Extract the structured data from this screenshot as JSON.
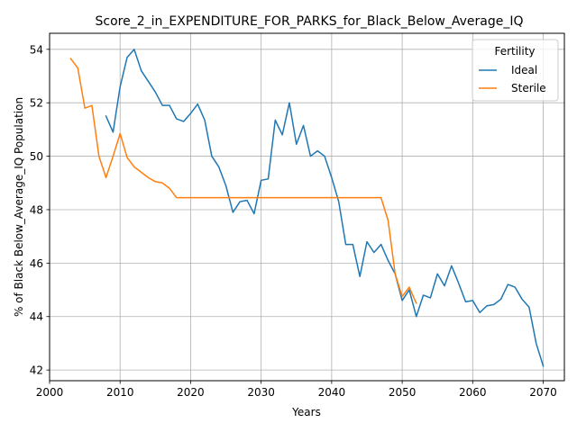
{
  "chart_data": {
    "type": "line",
    "title": "Score_2_in_EXPENDITURE_FOR_PARKS_for_Black_Below_Average_IQ",
    "xlabel": "Years",
    "ylabel": "% of Black Below_Average_IQ Population",
    "xlim": [
      2000,
      2073
    ],
    "ylim": [
      41.6,
      54.6
    ],
    "xticks": [
      2000,
      2010,
      2020,
      2030,
      2040,
      2050,
      2060,
      2070
    ],
    "yticks": [
      42,
      44,
      46,
      48,
      50,
      52,
      54
    ],
    "grid": true,
    "legend": {
      "title": "Fertility",
      "placement": "top-right"
    },
    "series": [
      {
        "name": "Ideal",
        "color": "#1f77b4",
        "x": [
          2008,
          2009,
          2010,
          2011,
          2012,
          2013,
          2014,
          2015,
          2016,
          2017,
          2018,
          2019,
          2020,
          2021,
          2022,
          2023,
          2024,
          2025,
          2026,
          2027,
          2028,
          2029,
          2030,
          2031,
          2032,
          2033,
          2034,
          2035,
          2036,
          2037,
          2038,
          2039,
          2040,
          2041,
          2042,
          2043,
          2044,
          2045,
          2046,
          2047,
          2048,
          2049,
          2050,
          2051,
          2052,
          2053,
          2054,
          2055,
          2056,
          2057,
          2058,
          2059,
          2060,
          2061,
          2062,
          2063,
          2064,
          2065,
          2066,
          2067,
          2068,
          2069,
          2070
        ],
        "y": [
          51.5,
          50.9,
          52.6,
          53.7,
          54.0,
          53.2,
          52.8,
          52.4,
          51.9,
          51.9,
          51.4,
          51.3,
          51.6,
          51.95,
          51.35,
          50.0,
          49.6,
          48.9,
          47.9,
          48.3,
          48.35,
          47.85,
          49.1,
          49.15,
          51.35,
          50.8,
          52.0,
          50.45,
          51.15,
          50.0,
          50.2,
          50.0,
          49.2,
          48.3,
          46.7,
          46.7,
          45.5,
          46.8,
          46.4,
          46.7,
          46.1,
          45.6,
          44.6,
          45.0,
          44.0,
          44.8,
          44.7,
          45.6,
          45.15,
          45.9,
          45.25,
          44.55,
          44.6,
          44.15,
          44.4,
          44.45,
          44.65,
          45.2,
          45.1,
          44.65,
          44.35,
          43.0,
          42.15
        ]
      },
      {
        "name": "Sterile",
        "color": "#ff7f0e",
        "x": [
          2003,
          2004,
          2005,
          2006,
          2007,
          2008,
          2009,
          2010,
          2011,
          2012,
          2013,
          2014,
          2015,
          2016,
          2017,
          2018,
          2019,
          2020,
          2021,
          2022,
          2023,
          2024,
          2025,
          2026,
          2027,
          2028,
          2029,
          2030,
          2031,
          2032,
          2033,
          2034,
          2035,
          2036,
          2037,
          2038,
          2039,
          2040,
          2041,
          2042,
          2043,
          2044,
          2045,
          2046,
          2047,
          2048,
          2049,
          2050,
          2051,
          2052
        ],
        "y": [
          53.65,
          53.3,
          51.8,
          51.9,
          50.0,
          49.2,
          50.0,
          50.85,
          49.95,
          49.6,
          49.4,
          49.2,
          49.05,
          49.0,
          48.8,
          48.45,
          48.45,
          48.45,
          48.45,
          48.45,
          48.45,
          48.45,
          48.45,
          48.45,
          48.45,
          48.45,
          48.45,
          48.45,
          48.45,
          48.45,
          48.45,
          48.45,
          48.45,
          48.45,
          48.45,
          48.45,
          48.45,
          48.45,
          48.45,
          48.45,
          48.45,
          48.45,
          48.45,
          48.45,
          48.45,
          47.6,
          45.6,
          44.75,
          45.1,
          44.5
        ]
      }
    ]
  }
}
